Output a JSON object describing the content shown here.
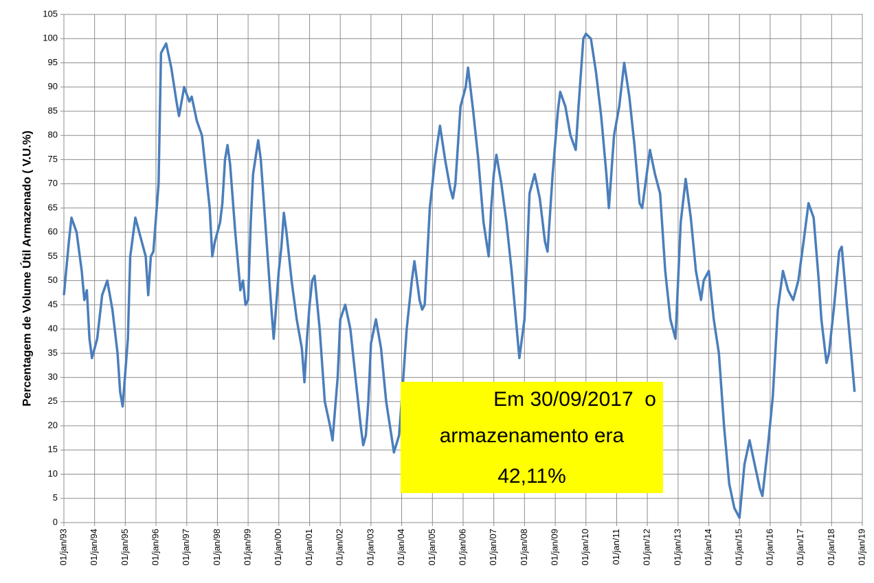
{
  "chart_data": {
    "type": "line",
    "ylabel": "Percentagem de Volume Útil Armazenado ( V.U.%)",
    "annotation": [
      "Em 30/09/2017  o",
      "armazenamento era",
      "42,11%"
    ],
    "grid": true,
    "xlim": [
      "1993-01-01",
      "2019-01-01"
    ],
    "xticks": [
      {
        "value": "1993-01-01",
        "label": "01/jan/93"
      },
      {
        "value": "1994-01-01",
        "label": "01/jan/94"
      },
      {
        "value": "1995-01-01",
        "label": "01/jan/95"
      },
      {
        "value": "1996-01-01",
        "label": "01/jan/96"
      },
      {
        "value": "1997-01-01",
        "label": "01/jan/97"
      },
      {
        "value": "1998-01-01",
        "label": "01/jan/98"
      },
      {
        "value": "1999-01-01",
        "label": "01/jan/99"
      },
      {
        "value": "2000-01-01",
        "label": "01/jan/00"
      },
      {
        "value": "2001-01-01",
        "label": "01/jan/01"
      },
      {
        "value": "2002-01-01",
        "label": "01/jan/02"
      },
      {
        "value": "2003-01-01",
        "label": "01/jan/03"
      },
      {
        "value": "2004-01-01",
        "label": "01/jan/04"
      },
      {
        "value": "2005-01-01",
        "label": "01/jan/05"
      },
      {
        "value": "2006-01-01",
        "label": "01/jan/06"
      },
      {
        "value": "2007-01-01",
        "label": "01/jan/07"
      },
      {
        "value": "2008-01-01",
        "label": "01/jan/08"
      },
      {
        "value": "2009-01-01",
        "label": "01/jan/09"
      },
      {
        "value": "2010-01-01",
        "label": "01/jan/10"
      },
      {
        "value": "2011-01-01",
        "label": "01/jan/11"
      },
      {
        "value": "2012-01-01",
        "label": "01/jan/12"
      },
      {
        "value": "2013-01-01",
        "label": "01/jan/13"
      },
      {
        "value": "2014-01-01",
        "label": "01/jan/14"
      },
      {
        "value": "2015-01-01",
        "label": "01/jan/15"
      },
      {
        "value": "2016-01-01",
        "label": "01/jan/16"
      },
      {
        "value": "2017-01-01",
        "label": "01/jan/17"
      },
      {
        "value": "2018-01-01",
        "label": "01/jan/18"
      },
      {
        "value": "2019-01-01",
        "label": "01/jan/19"
      }
    ],
    "ylim": [
      0,
      105
    ],
    "yticks": [
      0,
      5,
      10,
      15,
      20,
      25,
      30,
      35,
      40,
      45,
      50,
      55,
      60,
      65,
      70,
      75,
      80,
      85,
      90,
      95,
      100,
      105
    ],
    "x": [
      "1993-01-01",
      "1993-03-01",
      "1993-04-01",
      "1993-06-01",
      "1993-08-01",
      "1993-09-01",
      "1993-10-01",
      "1993-11-01",
      "1993-12-01",
      "1994-02-01",
      "1994-04-01",
      "1994-06-01",
      "1994-08-01",
      "1994-10-01",
      "1994-11-01",
      "1994-12-01",
      "1995-02-01",
      "1995-03-01",
      "1995-05-01",
      "1995-07-01",
      "1995-09-01",
      "1995-10-01",
      "1995-11-01",
      "1995-12-01",
      "1996-02-01",
      "1996-03-01",
      "1996-05-01",
      "1996-07-01",
      "1996-09-01",
      "1996-10-01",
      "1996-11-01",
      "1996-12-01",
      "1997-02-01",
      "1997-03-01",
      "1997-05-01",
      "1997-07-01",
      "1997-08-01",
      "1997-10-01",
      "1997-11-01",
      "1997-12-01",
      "1998-02-01",
      "1998-03-01",
      "1998-04-01",
      "1998-05-01",
      "1998-06-01",
      "1998-08-01",
      "1998-10-01",
      "1998-11-01",
      "1998-12-01",
      "1999-01-01",
      "1999-02-01",
      "1999-03-01",
      "1999-05-01",
      "1999-06-01",
      "1999-08-01",
      "1999-10-01",
      "1999-11-01",
      "2000-01-01",
      "2000-02-01",
      "2000-03-01",
      "2000-04-01",
      "2000-06-01",
      "2000-08-01",
      "2000-10-01",
      "2000-11-01",
      "2000-12-01",
      "2001-01-01",
      "2001-02-01",
      "2001-03-01",
      "2001-05-01",
      "2001-07-01",
      "2001-09-01",
      "2001-10-01",
      "2001-12-01",
      "2002-01-01",
      "2002-03-01",
      "2002-05-01",
      "2002-07-01",
      "2002-09-01",
      "2002-10-01",
      "2002-11-01",
      "2002-12-01",
      "2003-01-01",
      "2003-03-01",
      "2003-05-01",
      "2003-07-01",
      "2003-09-01",
      "2003-10-01",
      "2003-12-01",
      "2004-01-01",
      "2004-03-01",
      "2004-05-01",
      "2004-06-01",
      "2004-08-01",
      "2004-09-01",
      "2004-10-01",
      "2004-12-01",
      "2005-02-01",
      "2005-04-01",
      "2005-06-01",
      "2005-08-01",
      "2005-09-01",
      "2005-10-01",
      "2005-12-01",
      "2006-02-01",
      "2006-03-01",
      "2006-05-01",
      "2006-07-01",
      "2006-09-01",
      "2006-11-01",
      "2006-12-01",
      "2007-01-01",
      "2007-02-01",
      "2007-04-01",
      "2007-06-01",
      "2007-08-01",
      "2007-10-01",
      "2007-11-01",
      "2008-01-01",
      "2008-02-01",
      "2008-03-01",
      "2008-05-01",
      "2008-07-01",
      "2008-09-01",
      "2008-10-01",
      "2008-12-01",
      "2009-02-01",
      "2009-03-01",
      "2009-05-01",
      "2009-07-01",
      "2009-09-01",
      "2009-10-01",
      "2009-12-01",
      "2010-01-01",
      "2010-03-01",
      "2010-05-01",
      "2010-07-01",
      "2010-09-01",
      "2010-10-01",
      "2010-12-01",
      "2011-02-01",
      "2011-04-01",
      "2011-06-01",
      "2011-08-01",
      "2011-10-01",
      "2011-11-01",
      "2012-02-01",
      "2012-04-01",
      "2012-06-01",
      "2012-08-01",
      "2012-10-01",
      "2012-12-01",
      "2013-02-01",
      "2013-04-01",
      "2013-06-01",
      "2013-08-01",
      "2013-10-01",
      "2013-11-01",
      "2014-01-01",
      "2014-03-01",
      "2014-05-01",
      "2014-07-01",
      "2014-09-01",
      "2014-11-01",
      "2015-01-01",
      "2015-03-01",
      "2015-05-01",
      "2015-07-01",
      "2015-09-01",
      "2015-10-01",
      "2015-12-01",
      "2016-02-01",
      "2016-04-01",
      "2016-06-01",
      "2016-08-01",
      "2016-10-01",
      "2016-12-01",
      "2017-02-01",
      "2017-04-01",
      "2017-06-01",
      "2017-08-01",
      "2017-09-01",
      "2017-11-01",
      "2017-12-01",
      "2018-02-01",
      "2018-04-01",
      "2018-05-01",
      "2018-07-01",
      "2018-09-01",
      "2018-10-01"
    ],
    "series": [
      {
        "name": "V.U.%",
        "color": "#4a7ebb",
        "values": [
          47,
          58,
          63,
          60,
          52,
          46,
          48,
          38,
          34,
          38,
          47,
          50,
          44,
          35,
          27,
          24,
          38,
          55,
          63,
          59,
          55,
          47,
          55,
          56,
          70,
          97,
          99,
          94,
          87,
          84,
          87,
          90,
          87,
          88,
          83,
          80,
          75,
          65,
          55,
          58,
          62,
          66,
          75,
          78,
          74,
          60,
          48,
          50,
          45,
          46,
          62,
          72,
          79,
          75,
          60,
          45,
          38,
          52,
          57,
          64,
          60,
          50,
          42,
          36,
          29,
          38,
          45,
          50,
          51,
          40,
          25,
          20,
          17,
          30,
          42,
          45,
          40,
          30,
          20,
          16,
          18,
          25,
          37,
          42,
          36,
          25,
          18,
          14.5,
          18,
          25,
          40,
          50,
          54,
          46,
          44,
          45,
          65,
          75,
          82,
          75,
          69,
          67,
          70,
          86,
          90,
          94,
          85,
          75,
          62,
          55,
          65,
          72,
          76,
          70,
          62,
          52,
          40,
          34,
          42,
          55,
          68,
          72,
          67,
          58,
          56,
          72,
          85,
          89,
          86,
          80,
          77,
          85,
          100,
          101,
          100,
          93,
          84,
          72,
          65,
          80,
          86,
          95,
          88,
          78,
          66,
          65,
          77,
          72,
          68,
          52,
          42,
          38,
          62,
          71,
          63,
          52,
          46,
          50,
          52,
          42,
          35,
          20,
          8,
          3,
          1,
          12,
          17,
          12,
          7,
          5.5,
          15,
          26,
          44,
          52,
          48,
          46,
          50,
          58,
          66,
          63,
          50,
          42,
          33,
          35,
          45,
          56,
          57,
          45,
          33,
          27
        ]
      }
    ]
  }
}
